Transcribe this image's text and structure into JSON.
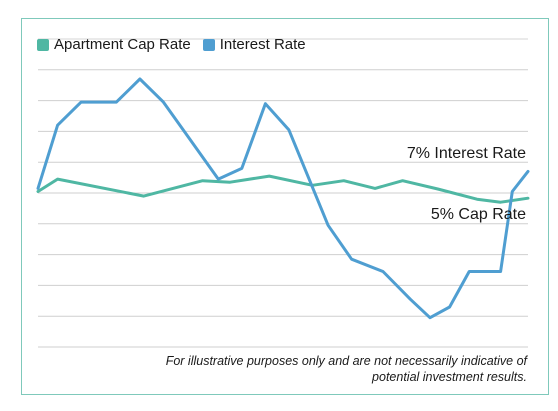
{
  "legend": [
    {
      "name": "Apartment Cap Rate",
      "color": "#4fb7a3"
    },
    {
      "name": "Interest Rate",
      "color": "#4f9ed1"
    }
  ],
  "annotations": {
    "interest": "7%  Interest Rate",
    "cap": "5% Cap Rate"
  },
  "footnote": {
    "line1": "For illustrative purposes only and are not necessarily indicative of",
    "line2": "potential investment results."
  },
  "chart_data": {
    "type": "line",
    "grid": true,
    "gridlines": 10,
    "ylim": [
      0,
      100
    ],
    "series": [
      {
        "name": "Apartment Cap Rate",
        "color": "#4fb7a3",
        "points": [
          [
            0,
            50.5
          ],
          [
            5,
            54.5
          ],
          [
            27,
            49
          ],
          [
            42,
            54
          ],
          [
            49,
            53.5
          ],
          [
            59,
            55.5
          ],
          [
            70,
            52.5
          ],
          [
            78,
            54
          ],
          [
            86,
            51.5
          ],
          [
            93,
            54
          ],
          [
            102,
            51.3
          ],
          [
            112,
            48
          ],
          [
            118,
            47
          ],
          [
            125,
            48.3
          ]
        ]
      },
      {
        "name": "Interest Rate",
        "color": "#4f9ed1",
        "points": [
          [
            0,
            51.5
          ],
          [
            5,
            72
          ],
          [
            11,
            79.5
          ],
          [
            20,
            79.5
          ],
          [
            26,
            87
          ],
          [
            32,
            79.5
          ],
          [
            46,
            54.5
          ],
          [
            52,
            58
          ],
          [
            58,
            79
          ],
          [
            64,
            70.5
          ],
          [
            74,
            39.5
          ],
          [
            80,
            28.5
          ],
          [
            88,
            24.5
          ],
          [
            95,
            15.5
          ],
          [
            100,
            9.5
          ],
          [
            105,
            13
          ],
          [
            110,
            24.5
          ],
          [
            118,
            24.5
          ],
          [
            121,
            50.5
          ],
          [
            125,
            57
          ]
        ]
      }
    ]
  }
}
